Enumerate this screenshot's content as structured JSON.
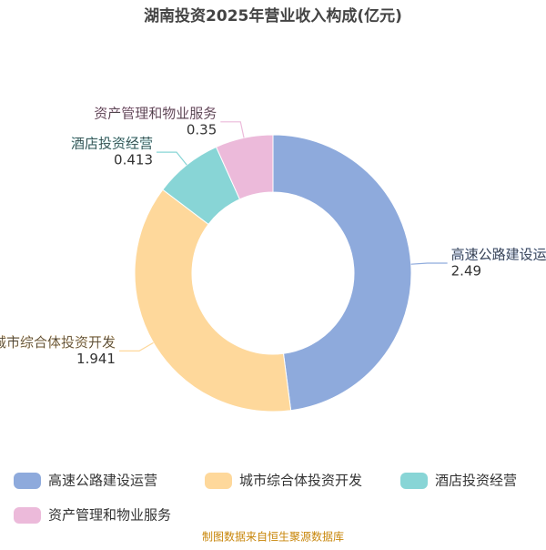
{
  "chart_data": {
    "type": "donut",
    "title": "湖南投资2025年营业收入构成(亿元)",
    "categories": [
      "高速公路建设运营",
      "城市综合体投资开发",
      "酒店投资经营",
      "资产管理和物业服务"
    ],
    "values": [
      2.49,
      1.941,
      0.413,
      0.35
    ],
    "colors": [
      "#8eaadc",
      "#fed89b",
      "#88d5d6",
      "#ecbada"
    ],
    "legend": "bottom",
    "source": "制图数据来自恒生聚源数据库"
  }
}
